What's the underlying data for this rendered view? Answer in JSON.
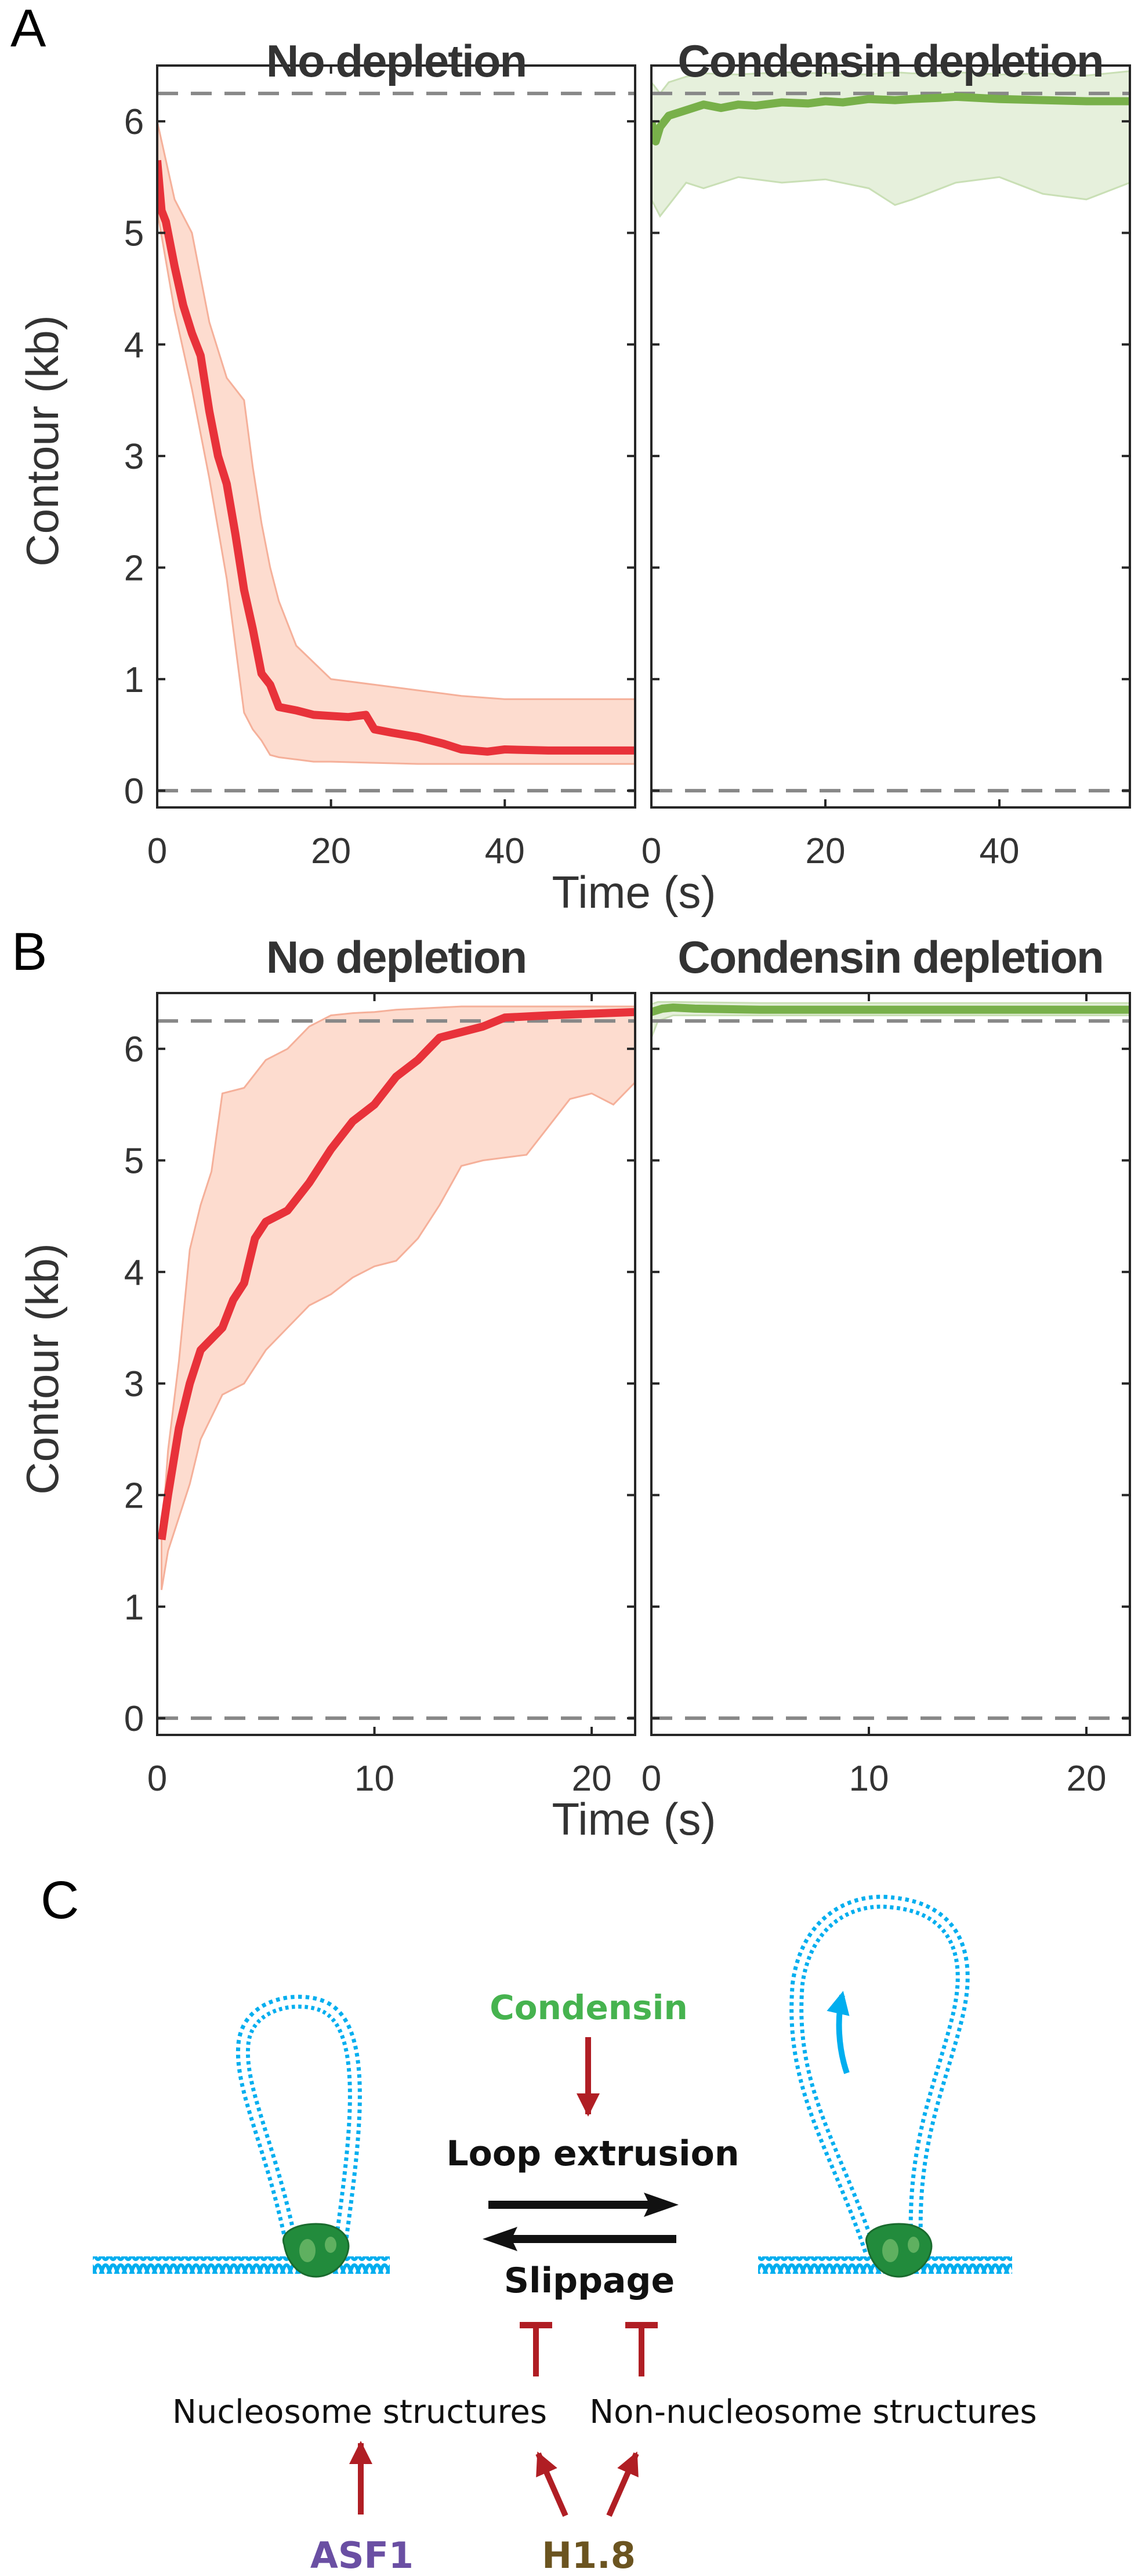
{
  "figure": {
    "panel_labels": [
      "A",
      "B",
      "C"
    ],
    "colors": {
      "no_depletion_line": "#e8323a",
      "no_depletion_band": "#fddccf",
      "no_depletion_band_edge": "#f5b09a",
      "condensin_line": "#78b04a",
      "condensin_band": "#e6f0dc",
      "condensin_band_edge": "#c9dfb5",
      "reference_dash": "#888888",
      "dna": "#00aeef",
      "condensin_protein": "#228b3c",
      "inhibit_arrow": "#b01e24",
      "condensin_text": "#46b34f",
      "asf1_text": "#6a4fa3",
      "h18_text": "#6b5420"
    }
  },
  "chart_data": [
    {
      "panel": "A",
      "type": "line",
      "title": "No depletion",
      "xlabel": "Time (s)",
      "ylabel": "Contour (kb)",
      "xlim": [
        0,
        55
      ],
      "ylim": [
        -0.15,
        6.5
      ],
      "xticks": [
        0,
        20,
        40
      ],
      "yticks": [
        0,
        1,
        2,
        3,
        4,
        5,
        6
      ],
      "reference_lines": [
        0,
        6.25
      ],
      "series": [
        {
          "name": "mean",
          "color_key": "no_depletion_line",
          "x": [
            0,
            0.5,
            1,
            2,
            3,
            4,
            5,
            6,
            7,
            8,
            9,
            10,
            11,
            12,
            13,
            14,
            16,
            18,
            20,
            22,
            24,
            25,
            27,
            30,
            33,
            35,
            38,
            40,
            45,
            55
          ],
          "y": [
            5.65,
            5.2,
            5.1,
            4.7,
            4.35,
            4.1,
            3.9,
            3.4,
            3.0,
            2.75,
            2.3,
            1.8,
            1.45,
            1.05,
            0.95,
            0.75,
            0.72,
            0.68,
            0.67,
            0.66,
            0.68,
            0.55,
            0.52,
            0.48,
            0.42,
            0.37,
            0.35,
            0.37,
            0.36,
            0.36
          ]
        }
      ],
      "band": {
        "name": "spread",
        "color_key": "no_depletion_band",
        "x": [
          0,
          2,
          4,
          6,
          8,
          10,
          11,
          12,
          13,
          14,
          16,
          18,
          20,
          25,
          30,
          35,
          40,
          55
        ],
        "upper": [
          6.0,
          5.3,
          5.0,
          4.2,
          3.7,
          3.5,
          2.9,
          2.4,
          2.0,
          1.7,
          1.3,
          1.15,
          1.0,
          0.95,
          0.9,
          0.85,
          0.82,
          0.82
        ],
        "lower": [
          5.2,
          4.3,
          3.6,
          2.8,
          1.9,
          0.7,
          0.55,
          0.45,
          0.32,
          0.3,
          0.28,
          0.26,
          0.26,
          0.25,
          0.24,
          0.24,
          0.24,
          0.24
        ]
      }
    },
    {
      "panel": "A",
      "type": "line",
      "title": "Condensin depletion",
      "xlabel": "Time (s)",
      "ylabel": "",
      "xlim": [
        0,
        55
      ],
      "ylim": [
        -0.15,
        6.5
      ],
      "xticks": [
        0,
        20,
        40
      ],
      "yticks": [
        0,
        1,
        2,
        3,
        4,
        5,
        6
      ],
      "reference_lines": [
        0,
        6.25
      ],
      "series": [
        {
          "name": "mean",
          "color_key": "condensin_line",
          "x": [
            0,
            0.5,
            1,
            2,
            4,
            6,
            8,
            10,
            12,
            15,
            18,
            20,
            22,
            25,
            28,
            30,
            33,
            35,
            40,
            45,
            50,
            55
          ],
          "y": [
            6.0,
            5.82,
            5.95,
            6.05,
            6.1,
            6.15,
            6.12,
            6.15,
            6.14,
            6.17,
            6.16,
            6.18,
            6.17,
            6.2,
            6.19,
            6.2,
            6.21,
            6.22,
            6.2,
            6.19,
            6.18,
            6.18
          ]
        }
      ],
      "band": {
        "name": "spread",
        "color_key": "condensin_band",
        "x": [
          0,
          1,
          2,
          4,
          6,
          10,
          15,
          20,
          25,
          28,
          30,
          35,
          40,
          45,
          50,
          55
        ],
        "upper": [
          6.35,
          6.25,
          6.35,
          6.4,
          6.43,
          6.42,
          6.44,
          6.43,
          6.42,
          6.44,
          6.43,
          6.44,
          6.42,
          6.43,
          6.41,
          6.45
        ],
        "lower": [
          5.3,
          5.15,
          5.25,
          5.45,
          5.4,
          5.5,
          5.45,
          5.48,
          5.4,
          5.25,
          5.3,
          5.45,
          5.5,
          5.35,
          5.3,
          5.45
        ]
      }
    },
    {
      "panel": "B",
      "type": "line",
      "title": "No depletion",
      "xlabel": "Time (s)",
      "ylabel": "Contour (kb)",
      "xlim": [
        0,
        22
      ],
      "ylim": [
        -0.15,
        6.5
      ],
      "xticks": [
        0,
        10,
        20
      ],
      "yticks": [
        0,
        1,
        2,
        3,
        4,
        5,
        6
      ],
      "reference_lines": [
        0,
        6.25
      ],
      "series": [
        {
          "name": "mean",
          "color_key": "no_depletion_line",
          "x": [
            0.2,
            0.5,
            1,
            1.5,
            2,
            3,
            3.5,
            4,
            4.5,
            5,
            6,
            7,
            8,
            9,
            10,
            11,
            12,
            13,
            14,
            15,
            16,
            18,
            22
          ],
          "y": [
            1.6,
            2.0,
            2.6,
            3.0,
            3.3,
            3.5,
            3.75,
            3.9,
            4.3,
            4.45,
            4.55,
            4.8,
            5.1,
            5.35,
            5.5,
            5.75,
            5.9,
            6.1,
            6.15,
            6.2,
            6.28,
            6.3,
            6.33
          ]
        }
      ],
      "band": {
        "name": "spread",
        "color_key": "no_depletion_band",
        "x": [
          0.2,
          0.5,
          1,
          1.5,
          2,
          2.5,
          3,
          4,
          5,
          6,
          7,
          8,
          9,
          10,
          11,
          12,
          13,
          14,
          15,
          17,
          18,
          19,
          20,
          21,
          22
        ],
        "upper": [
          1.6,
          2.4,
          3.2,
          4.2,
          4.6,
          4.9,
          5.6,
          5.65,
          5.9,
          6.0,
          6.2,
          6.3,
          6.32,
          6.33,
          6.35,
          6.36,
          6.37,
          6.38,
          6.38,
          6.38,
          6.38,
          6.38,
          6.38,
          6.38,
          6.38
        ],
        "lower": [
          1.15,
          1.5,
          1.8,
          2.1,
          2.5,
          2.7,
          2.9,
          3.0,
          3.3,
          3.5,
          3.7,
          3.8,
          3.95,
          4.05,
          4.1,
          4.3,
          4.6,
          4.95,
          5.0,
          5.05,
          5.3,
          5.55,
          5.6,
          5.5,
          5.7
        ]
      }
    },
    {
      "panel": "B",
      "type": "line",
      "title": "Condensin depletion",
      "xlabel": "Time (s)",
      "ylabel": "",
      "xlim": [
        0,
        22
      ],
      "ylim": [
        -0.15,
        6.5
      ],
      "xticks": [
        0,
        10,
        20
      ],
      "yticks": [
        0,
        1,
        2,
        3,
        4,
        5,
        6
      ],
      "reference_lines": [
        0,
        6.25
      ],
      "series": [
        {
          "name": "mean",
          "color_key": "condensin_line",
          "x": [
            0,
            0.5,
            1,
            2,
            5,
            10,
            15,
            22
          ],
          "y": [
            6.33,
            6.36,
            6.37,
            6.36,
            6.35,
            6.35,
            6.35,
            6.35
          ]
        }
      ],
      "band": {
        "name": "spread",
        "color_key": "condensin_band",
        "x": [
          0,
          0.3,
          1,
          5,
          10,
          15,
          22
        ],
        "upper": [
          6.4,
          6.42,
          6.42,
          6.41,
          6.41,
          6.41,
          6.41
        ],
        "lower": [
          6.1,
          6.25,
          6.3,
          6.3,
          6.3,
          6.3,
          6.3
        ]
      }
    }
  ],
  "diagram": {
    "condensin_label": "Condensin",
    "loop_extrusion_label": "Loop extrusion",
    "slippage_label": "Slippage",
    "nucleosome_label": "Nucleosome structures",
    "non_nucleosome_label": "Non-nucleosome structures",
    "asf1_label": "ASF1",
    "h18_label": "H1.8"
  }
}
